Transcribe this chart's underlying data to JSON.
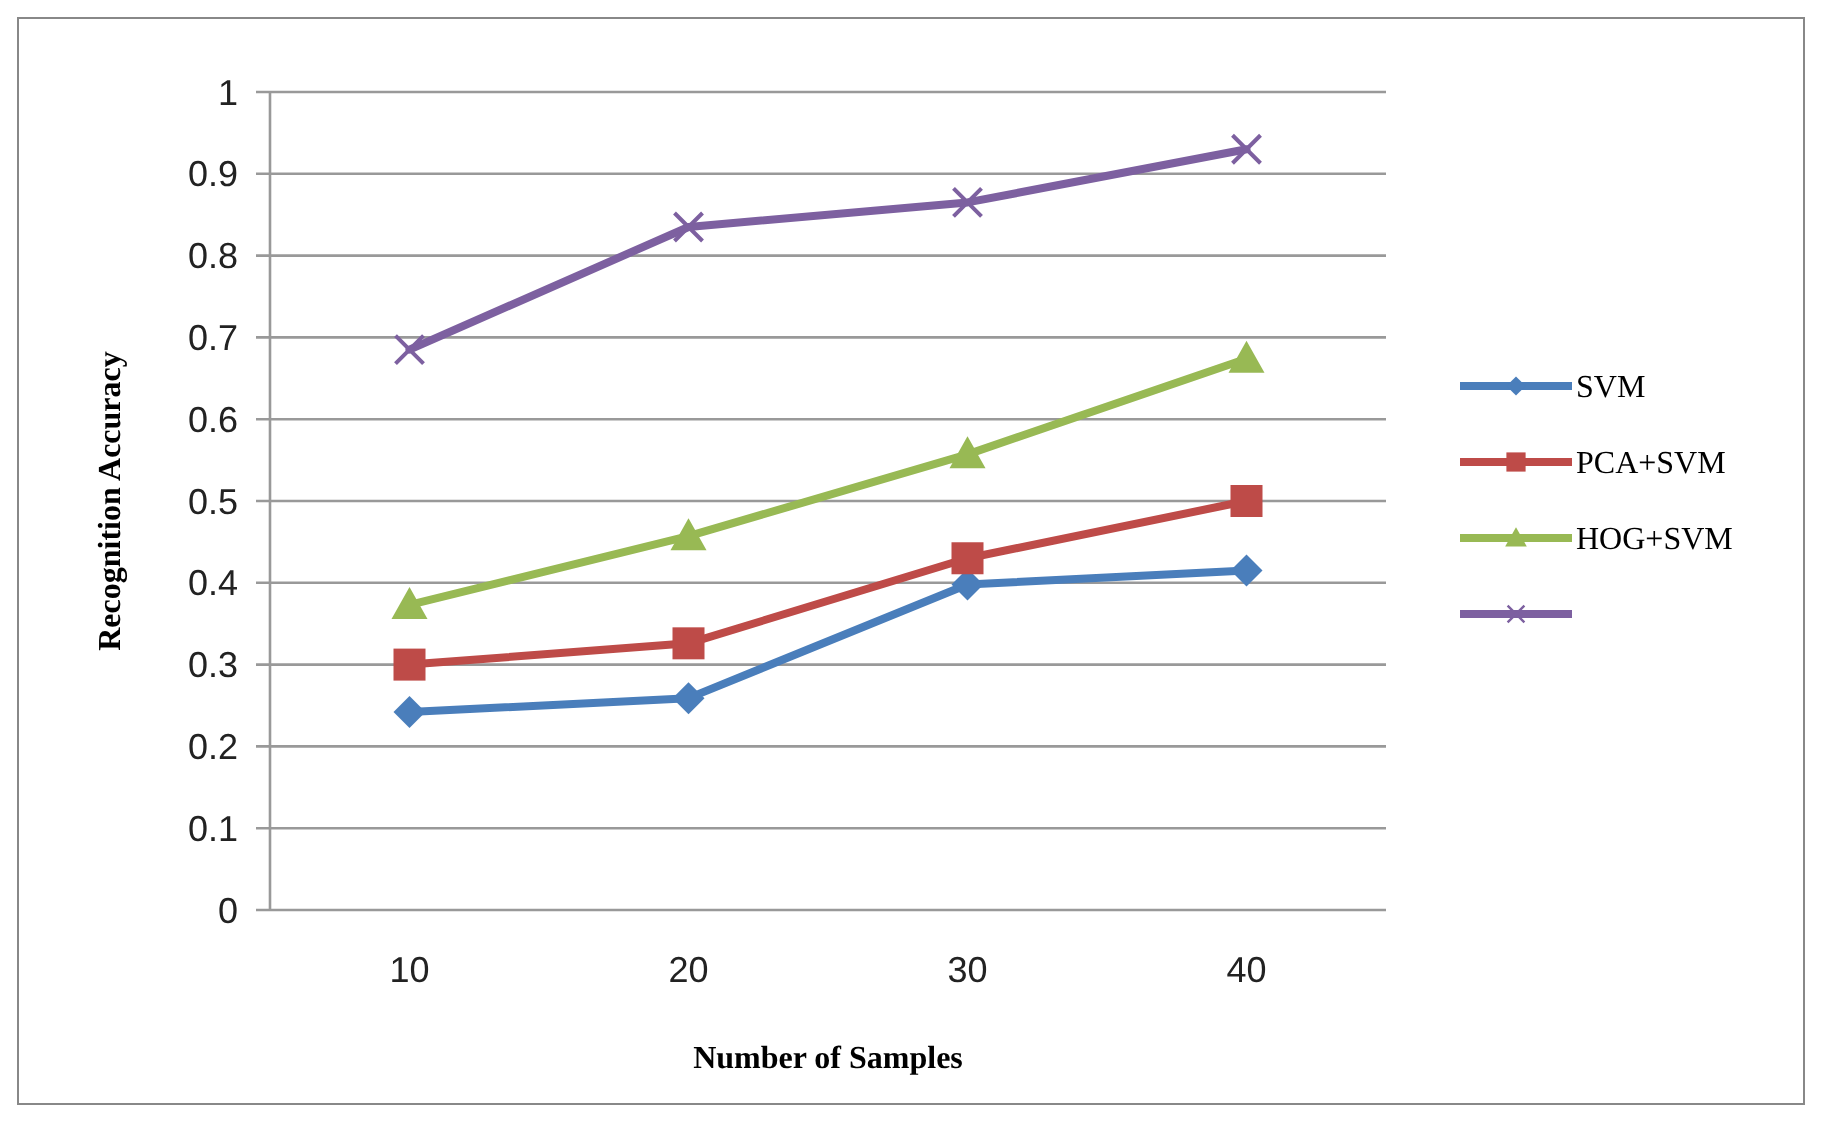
{
  "chart_data": {
    "type": "line",
    "xlabel": "Number of Samples",
    "ylabel": "Recognition Accuracy",
    "categories": [
      "10",
      "20",
      "30",
      "40"
    ],
    "series": [
      {
        "name": "SVM",
        "color": "#4a7ebb",
        "marker": "diamond",
        "values": [
          0.242,
          0.259,
          0.398,
          0.415
        ]
      },
      {
        "name": "PCA+SVM",
        "color": "#be4b48",
        "marker": "square",
        "values": [
          0.3,
          0.326,
          0.43,
          0.5
        ]
      },
      {
        "name": "HOG+SVM",
        "color": "#98b954",
        "marker": "triangle",
        "values": [
          0.373,
          0.457,
          0.557,
          0.674
        ]
      },
      {
        "color": "#7d60a0",
        "marker": "cross",
        "values": [
          0.685,
          0.835,
          0.865,
          0.93
        ]
      }
    ],
    "ylim": [
      0,
      1
    ],
    "yticks": [
      0,
      0.1,
      0.2,
      0.3,
      0.4,
      0.5,
      0.6,
      0.7,
      0.8,
      0.9,
      1
    ],
    "grid": "y",
    "legend": "right",
    "line_style": "solid"
  }
}
